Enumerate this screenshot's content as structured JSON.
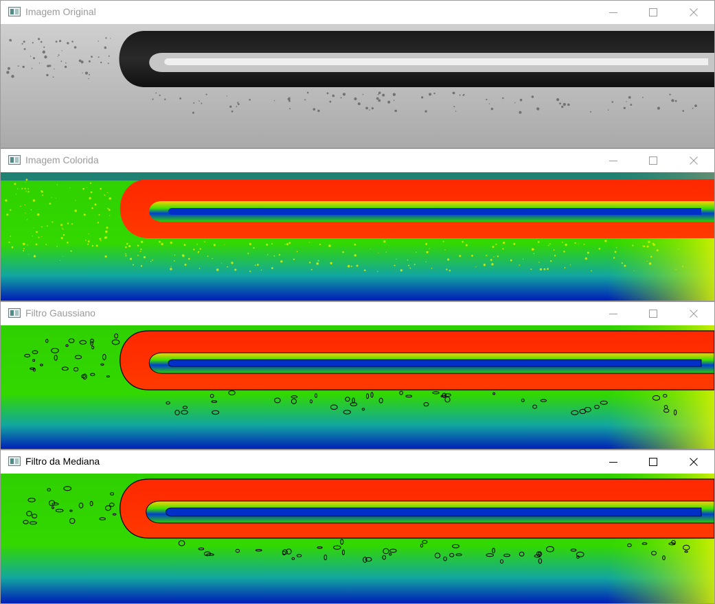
{
  "windows": [
    {
      "title": "Imagem Original",
      "active": false,
      "image": "grayscale-original"
    },
    {
      "title": "Imagem Colorida",
      "active": false,
      "image": "jet-colormap"
    },
    {
      "title": "Filtro Gaussiano",
      "active": false,
      "image": "gaussian-filter-contours"
    },
    {
      "title": "Filtro da Mediana",
      "active": true,
      "image": "median-filter-contours"
    }
  ],
  "icons": {
    "app": "window-app-icon",
    "minimize": "minimize-icon",
    "maximize": "maximize-icon",
    "close": "close-icon"
  },
  "colors": {
    "inactive_title": "#9a9a9a",
    "active_title": "#000000",
    "jet_red": "#ff2a00",
    "jet_yellow": "#e8f000",
    "jet_green": "#36e000",
    "jet_blue": "#0020c0"
  }
}
